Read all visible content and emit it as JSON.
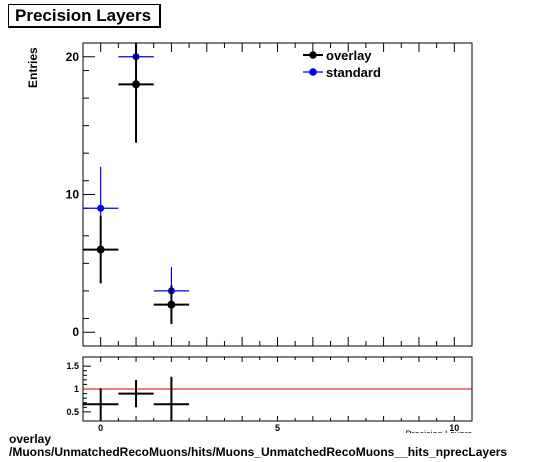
{
  "chart_data": [
    {
      "type": "scatter",
      "title": "Precision Layers",
      "ylabel": "Entries",
      "xlabel": "Precision Layers",
      "xlim": [
        -0.5,
        10.5
      ],
      "ylim": [
        -1,
        21
      ],
      "y_ticks": [
        0,
        10,
        20
      ],
      "x_ticks": [
        0,
        5,
        10
      ],
      "legend": "top-right",
      "series": [
        {
          "name": "overlay",
          "color": "#000000",
          "points": [
            {
              "x": 0,
              "y": 6,
              "xerr": 0.5,
              "yerr": 2.45
            },
            {
              "x": 1,
              "y": 18,
              "xerr": 0.5,
              "yerr": 4.24
            },
            {
              "x": 2,
              "y": 2,
              "xerr": 0.5,
              "yerr": 1.41
            }
          ]
        },
        {
          "name": "standard",
          "color": "#0000ee",
          "points": [
            {
              "x": 0,
              "y": 9,
              "xerr": 0.5,
              "yerr": 3.0
            },
            {
              "x": 1,
              "y": 20,
              "xerr": 0.5,
              "yerr": 4.47
            },
            {
              "x": 2,
              "y": 3,
              "xerr": 0.5,
              "yerr": 1.73
            }
          ]
        }
      ]
    },
    {
      "type": "scatter",
      "ylim": [
        0.3,
        1.7
      ],
      "y_ticks": [
        0.5,
        1,
        1.5
      ],
      "y_tick_labels": [
        "0.5",
        "1",
        "1.5"
      ],
      "reference_line": {
        "y": 1,
        "color": "#cc0000"
      },
      "series": [
        {
          "color": "#000000",
          "points": [
            {
              "x": 0,
              "y": 0.667,
              "xerr": 0.5,
              "yerr": 0.35
            },
            {
              "x": 1,
              "y": 0.9,
              "xerr": 0.5,
              "yerr": 0.3
            },
            {
              "x": 2,
              "y": 0.667,
              "xerr": 0.5,
              "yerr": 0.6
            }
          ]
        }
      ]
    }
  ],
  "footer": {
    "line1": "overlay",
    "line2": "/Muons/UnmatchedRecoMuons/hits/Muons_UnmatchedRecoMuons__hits_nprecLayers"
  }
}
